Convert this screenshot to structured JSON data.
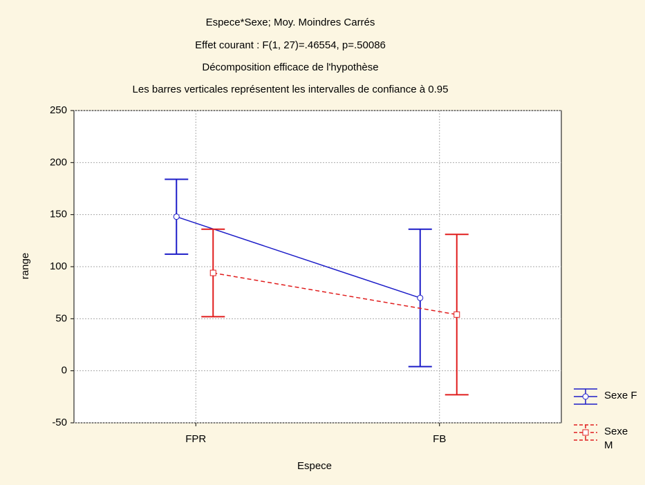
{
  "chart_data": {
    "type": "line",
    "title": "Espece*Sexe; Moy. Moindres Carrés",
    "subtitle": [
      "Effet courant : F(1, 27)=.46554, p=.50086",
      "Décomposition efficace de l'hypothèse",
      "Les barres verticales représentent les intervalles de confiance à 0.95"
    ],
    "x_label": "Espece",
    "y_label": "range",
    "categories": [
      "FPR",
      "FB"
    ],
    "series": [
      {
        "name": "Sexe F",
        "color": "#1c1cc8",
        "marker": "circle",
        "dashed": false,
        "values": [
          148,
          70
        ],
        "errors": [
          36,
          66
        ]
      },
      {
        "name": "Sexe M",
        "color": "#e01c1c",
        "marker": "square",
        "dashed": true,
        "values": [
          94,
          54
        ],
        "errors": [
          42,
          77
        ]
      }
    ],
    "ylim": [
      -50,
      250
    ],
    "yticks": [
      -50,
      0,
      50,
      100,
      150,
      200,
      250
    ],
    "grid": true,
    "legend": "lower right"
  }
}
